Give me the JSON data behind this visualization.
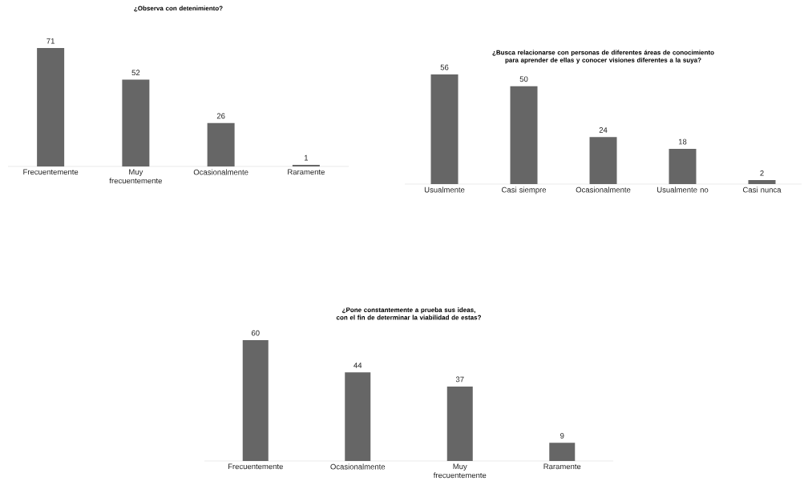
{
  "chart_data": [
    {
      "type": "bar",
      "title": "¿Observa con detenimiento?",
      "categories": [
        "Frecuentemente",
        "Muy frecuentemente",
        "Ocasionalmente",
        "Raramente"
      ],
      "values": [
        71,
        52,
        26,
        1
      ],
      "color": "#666666",
      "data_labels": true
    },
    {
      "type": "bar",
      "title": "¿Busca relacionarse con personas de diferentes áreas de conocimiento para aprender de ellas y conocer visiones diferentes a la suya?",
      "categories": [
        "Usualmente",
        "Casi siempre",
        "Ocasionalmente",
        "Usualmente no",
        "Casi nunca"
      ],
      "values": [
        56,
        50,
        24,
        18,
        2
      ],
      "color": "#666666",
      "data_labels": true
    },
    {
      "type": "bar",
      "title": "¿Pone constantemente a prueba sus ideas, con el fin de determinar la viabilidad de estas?",
      "categories": [
        "Frecuentemente",
        "Ocasionalmente",
        "Muy frecuentemente",
        "Raramente"
      ],
      "values": [
        60,
        44,
        37,
        9
      ],
      "color": "#666666",
      "data_labels": true
    }
  ]
}
